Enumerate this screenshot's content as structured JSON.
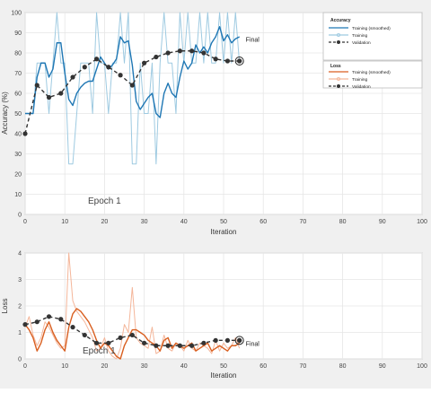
{
  "chart_data": [
    {
      "type": "line",
      "title": "",
      "xlabel": "Iteration",
      "ylabel": "Accuracy (%)",
      "xlim": [
        0,
        100
      ],
      "ylim": [
        0,
        100
      ],
      "xticks": [
        "0",
        "10",
        "20",
        "30",
        "40",
        "50",
        "60",
        "70",
        "80",
        "90",
        "100"
      ],
      "yticks": [
        "0",
        "10",
        "20",
        "30",
        "40",
        "50",
        "60",
        "70",
        "80",
        "90",
        "100"
      ],
      "grid": true,
      "annotations": [
        {
          "text": "Epoch 1",
          "x": 16,
          "y": 7
        },
        {
          "text": "Final",
          "x": 56,
          "y": 87
        }
      ],
      "series": [
        {
          "name": "Training (smoothed)",
          "color": "#1f77b4",
          "style": "solid",
          "x": [
            0,
            1,
            2,
            3,
            4,
            5,
            6,
            7,
            8,
            9,
            10,
            11,
            12,
            13,
            14,
            15,
            16,
            17,
            18,
            19,
            20,
            21,
            22,
            23,
            24,
            25,
            26,
            27,
            28,
            29,
            30,
            31,
            32,
            33,
            34,
            35,
            36,
            37,
            38,
            39,
            40,
            41,
            42,
            43,
            44,
            45,
            46,
            47,
            48,
            49,
            50,
            51,
            52,
            53,
            54
          ],
          "values": [
            50,
            50,
            50,
            68,
            75,
            75,
            68,
            72,
            85,
            85,
            70,
            57,
            54,
            60,
            63,
            65,
            66,
            66,
            72,
            78,
            75,
            72,
            74,
            77,
            88,
            85,
            86,
            74,
            56,
            52,
            55,
            58,
            60,
            50,
            48,
            60,
            65,
            60,
            58,
            68,
            76,
            72,
            75,
            84,
            80,
            83,
            80,
            85,
            88,
            93,
            86,
            89,
            85,
            87,
            88
          ]
        },
        {
          "name": "Training",
          "color": "#9ecae1",
          "style": "solid",
          "x": [
            0,
            1,
            2,
            3,
            4,
            5,
            6,
            7,
            8,
            9,
            10,
            11,
            12,
            13,
            14,
            15,
            16,
            17,
            18,
            19,
            20,
            21,
            22,
            23,
            24,
            25,
            26,
            27,
            28,
            29,
            30,
            31,
            32,
            33,
            34,
            35,
            36,
            37,
            38,
            39,
            40,
            41,
            42,
            43,
            44,
            45,
            46,
            47,
            48,
            49,
            50,
            51,
            52,
            53,
            54
          ],
          "values": [
            50,
            50,
            50,
            75,
            75,
            75,
            50,
            75,
            100,
            75,
            75,
            25,
            25,
            50,
            75,
            75,
            75,
            50,
            100,
            75,
            75,
            50,
            75,
            75,
            100,
            75,
            100,
            25,
            25,
            75,
            50,
            50,
            75,
            25,
            75,
            100,
            75,
            75,
            50,
            100,
            75,
            100,
            75,
            75,
            100,
            75,
            100,
            75,
            75,
            100,
            75,
            100,
            75,
            100,
            75
          ]
        },
        {
          "name": "Validation",
          "color": "#333333",
          "style": "dashed-markers",
          "x": [
            0,
            3,
            6,
            9,
            12,
            15,
            18,
            21,
            24,
            27,
            30,
            33,
            36,
            39,
            42,
            45,
            48,
            51,
            54
          ],
          "values": [
            40,
            64,
            58,
            60,
            68,
            73,
            77,
            73,
            69,
            64,
            75,
            78,
            80,
            81,
            81,
            80,
            77,
            76,
            76
          ]
        }
      ],
      "legend_group": {
        "heading": "Accuracy",
        "entries": [
          "Training (smoothed)",
          "Training",
          "Validation"
        ]
      }
    },
    {
      "type": "line",
      "title": "",
      "xlabel": "Iteration",
      "ylabel": "Loss",
      "xlim": [
        0,
        100
      ],
      "ylim": [
        0,
        4
      ],
      "xticks": [
        "0",
        "10",
        "20",
        "30",
        "40",
        "50",
        "60",
        "70",
        "80",
        "90",
        "100"
      ],
      "yticks": [
        "0",
        "1",
        "2",
        "3",
        "4"
      ],
      "grid": true,
      "annotations": [
        {
          "text": "Epoch 1",
          "x": 15,
          "y": 0.2
        },
        {
          "text": "Final",
          "x": 56,
          "y": 0.6
        }
      ],
      "series": [
        {
          "name": "Training (smoothed)",
          "color": "#d95f20",
          "style": "solid",
          "x": [
            0,
            1,
            2,
            3,
            4,
            5,
            6,
            7,
            8,
            9,
            10,
            11,
            12,
            13,
            14,
            15,
            16,
            17,
            18,
            19,
            20,
            21,
            22,
            23,
            24,
            25,
            26,
            27,
            28,
            29,
            30,
            31,
            32,
            33,
            34,
            35,
            36,
            37,
            38,
            39,
            40,
            41,
            42,
            43,
            44,
            45,
            46,
            47,
            48,
            49,
            50,
            51,
            52,
            53,
            54
          ],
          "values": [
            1.3,
            1.1,
            0.8,
            0.3,
            0.6,
            1.1,
            1.4,
            1.0,
            0.7,
            0.5,
            0.3,
            1.2,
            1.7,
            1.9,
            1.8,
            1.6,
            1.4,
            1.1,
            0.7,
            0.4,
            0.6,
            0.5,
            0.3,
            0.1,
            0.0,
            0.5,
            0.8,
            1.1,
            1.1,
            1.0,
            0.9,
            0.7,
            0.6,
            0.5,
            0.3,
            0.7,
            0.8,
            0.4,
            0.6,
            0.5,
            0.4,
            0.5,
            0.6,
            0.3,
            0.4,
            0.5,
            0.6,
            0.3,
            0.4,
            0.5,
            0.4,
            0.3,
            0.5,
            0.5,
            0.6
          ]
        },
        {
          "name": "Training",
          "color": "#f4b69a",
          "style": "solid",
          "x": [
            0,
            1,
            2,
            3,
            4,
            5,
            6,
            7,
            8,
            9,
            10,
            11,
            12,
            13,
            14,
            15,
            16,
            17,
            18,
            19,
            20,
            21,
            22,
            23,
            24,
            25,
            26,
            27,
            28,
            29,
            30,
            31,
            32,
            33,
            34,
            35,
            36,
            37,
            38,
            39,
            40,
            41,
            42,
            43,
            44,
            45,
            46,
            47,
            48,
            49,
            50,
            51,
            52,
            53,
            54
          ],
          "values": [
            1.2,
            1.6,
            0.9,
            0.5,
            0.8,
            1.4,
            1.2,
            0.9,
            0.6,
            0.4,
            0.5,
            4.0,
            2.2,
            1.8,
            1.6,
            1.4,
            1.1,
            0.8,
            0.3,
            0.4,
            0.8,
            0.3,
            0.1,
            0.0,
            0.4,
            1.3,
            1.0,
            2.7,
            0.8,
            0.6,
            0.5,
            0.4,
            1.2,
            0.2,
            0.3,
            0.9,
            0.4,
            0.3,
            0.6,
            0.5,
            0.3,
            0.7,
            0.4,
            0.3,
            0.6,
            0.5,
            0.4,
            0.2,
            0.7,
            0.3,
            0.6,
            0.4,
            0.5,
            0.8,
            0.4
          ]
        },
        {
          "name": "Validation",
          "color": "#333333",
          "style": "dashed-markers",
          "x": [
            0,
            3,
            6,
            9,
            12,
            15,
            18,
            21,
            24,
            27,
            30,
            33,
            36,
            39,
            42,
            45,
            48,
            51,
            54
          ],
          "values": [
            1.3,
            1.4,
            1.6,
            1.5,
            1.2,
            0.9,
            0.6,
            0.6,
            0.8,
            0.9,
            0.6,
            0.5,
            0.5,
            0.5,
            0.5,
            0.6,
            0.7,
            0.7,
            0.7
          ]
        }
      ],
      "legend_group": {
        "heading": "Loss",
        "entries": [
          "Training (smoothed)",
          "Training",
          "Validation"
        ]
      }
    }
  ]
}
